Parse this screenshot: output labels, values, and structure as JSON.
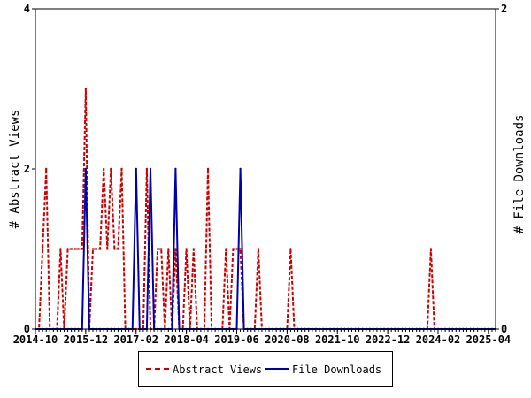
{
  "chart_data": {
    "type": "line",
    "title": "",
    "xlabel": "",
    "ylabel": "# Abstract Views",
    "y2label": "# File Downloads",
    "ylim": [
      0,
      4
    ],
    "y2lim": [
      0,
      2
    ],
    "yticks": [
      "0",
      "2",
      "4"
    ],
    "y2ticks": [
      "0",
      "2"
    ],
    "x_tick_labels": [
      "2014-10",
      "2015-12",
      "2017-02",
      "2018-04",
      "2019-06",
      "2020-08",
      "2021-10",
      "2022-12",
      "2024-02",
      "2025-04"
    ],
    "x_range": [
      "2014-10",
      "2025-06"
    ],
    "legend_position": "bottom",
    "colors": {
      "abstract_views": "#cc0000",
      "file_downloads": "#0000aa"
    },
    "series": [
      {
        "name": "Abstract Views",
        "axis": "left",
        "style": "dashed",
        "points": [
          [
            "2014-10",
            0
          ],
          [
            "2014-11",
            0
          ],
          [
            "2014-12",
            1
          ],
          [
            "2015-01",
            2
          ],
          [
            "2015-02",
            0
          ],
          [
            "2015-03",
            0
          ],
          [
            "2015-04",
            0
          ],
          [
            "2015-05",
            1
          ],
          [
            "2015-06",
            0
          ],
          [
            "2015-07",
            1
          ],
          [
            "2015-08",
            1
          ],
          [
            "2015-09",
            1
          ],
          [
            "2015-10",
            1
          ],
          [
            "2015-11",
            1
          ],
          [
            "2015-12",
            3
          ],
          [
            "2016-01",
            0
          ],
          [
            "2016-02",
            1
          ],
          [
            "2016-03",
            1
          ],
          [
            "2016-04",
            1
          ],
          [
            "2016-05",
            2
          ],
          [
            "2016-06",
            1
          ],
          [
            "2016-07",
            2
          ],
          [
            "2016-08",
            1
          ],
          [
            "2016-09",
            1
          ],
          [
            "2016-10",
            2
          ],
          [
            "2016-11",
            0
          ],
          [
            "2016-12",
            0
          ],
          [
            "2017-01",
            0
          ],
          [
            "2017-02",
            0
          ],
          [
            "2017-03",
            0
          ],
          [
            "2017-04",
            0
          ],
          [
            "2017-05",
            2
          ],
          [
            "2017-06",
            0
          ],
          [
            "2017-07",
            0
          ],
          [
            "2017-08",
            1
          ],
          [
            "2017-09",
            1
          ],
          [
            "2017-10",
            0
          ],
          [
            "2017-11",
            1
          ],
          [
            "2017-12",
            0
          ],
          [
            "2018-01",
            1
          ],
          [
            "2018-02",
            0
          ],
          [
            "2018-03",
            0
          ],
          [
            "2018-04",
            1
          ],
          [
            "2018-05",
            0
          ],
          [
            "2018-06",
            1
          ],
          [
            "2018-07",
            0
          ],
          [
            "2018-08",
            0
          ],
          [
            "2018-09",
            0
          ],
          [
            "2018-10",
            2
          ],
          [
            "2018-11",
            0
          ],
          [
            "2018-12",
            0
          ],
          [
            "2019-01",
            0
          ],
          [
            "2019-02",
            0
          ],
          [
            "2019-03",
            1
          ],
          [
            "2019-04",
            0
          ],
          [
            "2019-05",
            1
          ],
          [
            "2019-06",
            1
          ],
          [
            "2019-07",
            1
          ],
          [
            "2019-08",
            0
          ],
          [
            "2019-09",
            0
          ],
          [
            "2019-10",
            0
          ],
          [
            "2019-11",
            0
          ],
          [
            "2019-12",
            1
          ],
          [
            "2020-01",
            0
          ],
          [
            "2020-02",
            0
          ],
          [
            "2020-03",
            0
          ],
          [
            "2020-04",
            0
          ],
          [
            "2020-05",
            0
          ],
          [
            "2020-06",
            0
          ],
          [
            "2020-07",
            0
          ],
          [
            "2020-08",
            0
          ],
          [
            "2020-09",
            1
          ],
          [
            "2020-10",
            0
          ],
          [
            "2020-11",
            0
          ],
          [
            "2020-12",
            0
          ],
          [
            "2021-01",
            0
          ],
          [
            "2021-02",
            0
          ],
          [
            "2021-03",
            0
          ],
          [
            "2021-04",
            0
          ],
          [
            "2021-05",
            0
          ],
          [
            "2021-06",
            0
          ],
          [
            "2021-07",
            0
          ],
          [
            "2021-08",
            0
          ],
          [
            "2021-09",
            0
          ],
          [
            "2021-10",
            0
          ],
          [
            "2021-11",
            0
          ],
          [
            "2021-12",
            0
          ],
          [
            "2022-01",
            0
          ],
          [
            "2022-02",
            0
          ],
          [
            "2022-03",
            0
          ],
          [
            "2022-04",
            0
          ],
          [
            "2022-05",
            0
          ],
          [
            "2022-06",
            0
          ],
          [
            "2022-07",
            0
          ],
          [
            "2022-08",
            0
          ],
          [
            "2022-09",
            0
          ],
          [
            "2022-10",
            0
          ],
          [
            "2022-11",
            0
          ],
          [
            "2022-12",
            0
          ],
          [
            "2023-01",
            0
          ],
          [
            "2023-02",
            0
          ],
          [
            "2023-03",
            0
          ],
          [
            "2023-04",
            0
          ],
          [
            "2023-05",
            0
          ],
          [
            "2023-06",
            0
          ],
          [
            "2023-07",
            0
          ],
          [
            "2023-08",
            0
          ],
          [
            "2023-09",
            0
          ],
          [
            "2023-10",
            0
          ],
          [
            "2023-11",
            0
          ],
          [
            "2023-12",
            1
          ],
          [
            "2024-01",
            0
          ],
          [
            "2024-02",
            0
          ],
          [
            "2024-03",
            0
          ],
          [
            "2024-04",
            0
          ],
          [
            "2024-05",
            0
          ],
          [
            "2024-06",
            0
          ],
          [
            "2024-07",
            0
          ],
          [
            "2024-08",
            0
          ],
          [
            "2024-09",
            0
          ],
          [
            "2024-10",
            0
          ],
          [
            "2024-11",
            0
          ],
          [
            "2024-12",
            0
          ],
          [
            "2025-01",
            0
          ],
          [
            "2025-02",
            0
          ],
          [
            "2025-03",
            0
          ],
          [
            "2025-04",
            0
          ],
          [
            "2025-05",
            0
          ],
          [
            "2025-06",
            0
          ]
        ]
      },
      {
        "name": "File Downloads",
        "axis": "right",
        "style": "solid",
        "points": [
          [
            "2014-10",
            0
          ],
          [
            "2014-11",
            0
          ],
          [
            "2014-12",
            0
          ],
          [
            "2015-01",
            0
          ],
          [
            "2015-02",
            0
          ],
          [
            "2015-03",
            0
          ],
          [
            "2015-04",
            0
          ],
          [
            "2015-05",
            0
          ],
          [
            "2015-06",
            0
          ],
          [
            "2015-07",
            0
          ],
          [
            "2015-08",
            0
          ],
          [
            "2015-09",
            0
          ],
          [
            "2015-10",
            0
          ],
          [
            "2015-11",
            0
          ],
          [
            "2015-12",
            1
          ],
          [
            "2016-01",
            0
          ],
          [
            "2016-02",
            0
          ],
          [
            "2016-03",
            0
          ],
          [
            "2016-04",
            0
          ],
          [
            "2016-05",
            0
          ],
          [
            "2016-06",
            0
          ],
          [
            "2016-07",
            0
          ],
          [
            "2016-08",
            0
          ],
          [
            "2016-09",
            0
          ],
          [
            "2016-10",
            0
          ],
          [
            "2016-11",
            0
          ],
          [
            "2016-12",
            0
          ],
          [
            "2017-01",
            0
          ],
          [
            "2017-02",
            1
          ],
          [
            "2017-03",
            0
          ],
          [
            "2017-04",
            0
          ],
          [
            "2017-05",
            0
          ],
          [
            "2017-06",
            1
          ],
          [
            "2017-07",
            0
          ],
          [
            "2017-08",
            0
          ],
          [
            "2017-09",
            0
          ],
          [
            "2017-10",
            0
          ],
          [
            "2017-11",
            0
          ],
          [
            "2017-12",
            0
          ],
          [
            "2018-01",
            1
          ],
          [
            "2018-02",
            0
          ],
          [
            "2018-03",
            0
          ],
          [
            "2018-04",
            0
          ],
          [
            "2018-05",
            0
          ],
          [
            "2018-06",
            0
          ],
          [
            "2018-07",
            0
          ],
          [
            "2018-08",
            0
          ],
          [
            "2018-09",
            0
          ],
          [
            "2018-10",
            0
          ],
          [
            "2018-11",
            0
          ],
          [
            "2018-12",
            0
          ],
          [
            "2019-01",
            0
          ],
          [
            "2019-02",
            0
          ],
          [
            "2019-03",
            0
          ],
          [
            "2019-04",
            0
          ],
          [
            "2019-05",
            0
          ],
          [
            "2019-06",
            0
          ],
          [
            "2019-07",
            1
          ],
          [
            "2019-08",
            0
          ],
          [
            "2019-09",
            0
          ],
          [
            "2019-10",
            0
          ],
          [
            "2019-11",
            0
          ],
          [
            "2019-12",
            0
          ],
          [
            "2020-01",
            0
          ],
          [
            "2020-02",
            0
          ],
          [
            "2020-03",
            0
          ],
          [
            "2020-04",
            0
          ],
          [
            "2020-05",
            0
          ],
          [
            "2020-06",
            0
          ],
          [
            "2020-07",
            0
          ],
          [
            "2020-08",
            0
          ],
          [
            "2020-09",
            0
          ],
          [
            "2020-10",
            0
          ],
          [
            "2020-11",
            0
          ],
          [
            "2020-12",
            0
          ],
          [
            "2021-01",
            0
          ],
          [
            "2021-02",
            0
          ],
          [
            "2021-03",
            0
          ],
          [
            "2021-04",
            0
          ],
          [
            "2021-05",
            0
          ],
          [
            "2021-06",
            0
          ],
          [
            "2021-07",
            0
          ],
          [
            "2021-08",
            0
          ],
          [
            "2021-09",
            0
          ],
          [
            "2021-10",
            0
          ],
          [
            "2021-11",
            0
          ],
          [
            "2021-12",
            0
          ],
          [
            "2022-01",
            0
          ],
          [
            "2022-02",
            0
          ],
          [
            "2022-03",
            0
          ],
          [
            "2022-04",
            0
          ],
          [
            "2022-05",
            0
          ],
          [
            "2022-06",
            0
          ],
          [
            "2022-07",
            0
          ],
          [
            "2022-08",
            0
          ],
          [
            "2022-09",
            0
          ],
          [
            "2022-10",
            0
          ],
          [
            "2022-11",
            0
          ],
          [
            "2022-12",
            0
          ],
          [
            "2023-01",
            0
          ],
          [
            "2023-02",
            0
          ],
          [
            "2023-03",
            0
          ],
          [
            "2023-04",
            0
          ],
          [
            "2023-05",
            0
          ],
          [
            "2023-06",
            0
          ],
          [
            "2023-07",
            0
          ],
          [
            "2023-08",
            0
          ],
          [
            "2023-09",
            0
          ],
          [
            "2023-10",
            0
          ],
          [
            "2023-11",
            0
          ],
          [
            "2023-12",
            0
          ],
          [
            "2024-01",
            0
          ],
          [
            "2024-02",
            0
          ],
          [
            "2024-03",
            0
          ],
          [
            "2024-04",
            0
          ],
          [
            "2024-05",
            0
          ],
          [
            "2024-06",
            0
          ],
          [
            "2024-07",
            0
          ],
          [
            "2024-08",
            0
          ],
          [
            "2024-09",
            0
          ],
          [
            "2024-10",
            0
          ],
          [
            "2024-11",
            0
          ],
          [
            "2024-12",
            0
          ],
          [
            "2025-01",
            0
          ],
          [
            "2025-02",
            0
          ],
          [
            "2025-03",
            0
          ],
          [
            "2025-04",
            0
          ],
          [
            "2025-05",
            0
          ],
          [
            "2025-06",
            0
          ]
        ]
      }
    ]
  }
}
